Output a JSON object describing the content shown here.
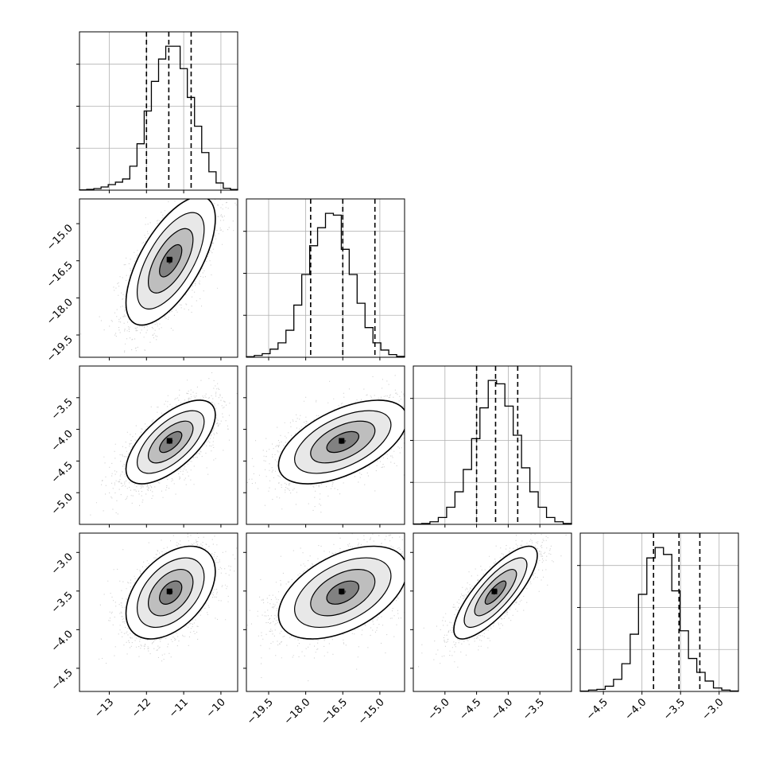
{
  "chart_data": {
    "type": "corner",
    "title": "",
    "grid": true,
    "parameters": [
      {
        "range": [
          -13.8,
          -9.55
        ],
        "ticks": [
          -13,
          -12,
          -11,
          -10
        ],
        "tick_labels": [
          "−13",
          "−12",
          "−11",
          "−10"
        ],
        "quantiles": [
          -12.0,
          -11.4,
          -10.8
        ],
        "mean": -11.35,
        "sigma": 0.6
      },
      {
        "range": [
          -20.4,
          -14.0
        ],
        "ticks": [
          -19.5,
          -18.0,
          -16.5,
          -15.0
        ],
        "tick_labels": [
          "−19.5",
          "−18.0",
          "−16.5",
          "−15.0"
        ],
        "quantiles": [
          -17.8,
          -16.5,
          -15.2
        ],
        "mean": -16.5,
        "sigma": 1.3
      },
      {
        "range": [
          -5.5,
          -3.0
        ],
        "ticks": [
          -5.0,
          -4.5,
          -4.0,
          -3.5
        ],
        "tick_labels": [
          "−5.0",
          "−4.5",
          "−4.0",
          "−3.5"
        ],
        "quantiles": [
          -4.5,
          -4.2,
          -3.85
        ],
        "mean": -4.2,
        "sigma": 0.33
      },
      {
        "range": [
          -4.8,
          -2.75
        ],
        "ticks": [
          -4.5,
          -4.0,
          -3.5,
          -3.0
        ],
        "tick_labels": [
          "−4.5",
          "−4.0",
          "−3.5",
          "−3.0"
        ],
        "quantiles": [
          -3.85,
          -3.52,
          -3.25
        ],
        "mean": -3.52,
        "sigma": 0.3
      }
    ],
    "histograms": [
      {
        "counts": [
          2,
          5,
          10,
          20,
          35,
          50,
          70,
          150,
          290,
          495,
          680,
          820,
          900,
          900,
          760,
          580,
          400,
          235,
          115,
          45,
          12,
          4
        ]
      },
      {
        "counts": [
          3,
          10,
          20,
          45,
          80,
          150,
          290,
          460,
          620,
          720,
          800,
          790,
          600,
          460,
          300,
          165,
          80,
          40,
          15,
          5
        ]
      },
      {
        "counts": [
          2,
          5,
          15,
          40,
          100,
          190,
          320,
          500,
          680,
          840,
          820,
          690,
          520,
          330,
          190,
          100,
          40,
          15,
          5
        ]
      },
      {
        "counts": [
          2,
          8,
          12,
          30,
          70,
          160,
          330,
          560,
          770,
          830,
          790,
          580,
          350,
          190,
          110,
          60,
          20,
          8,
          3
        ]
      }
    ],
    "correlations": {
      "1_0": 0.65,
      "2_0": 0.65,
      "2_1": 0.55,
      "3_0": 0.45,
      "3_1": 0.48,
      "3_2": 0.8
    },
    "colors": {
      "line": "#000000",
      "grid": "#b0b0b0",
      "points": "#7f7f7f"
    }
  }
}
